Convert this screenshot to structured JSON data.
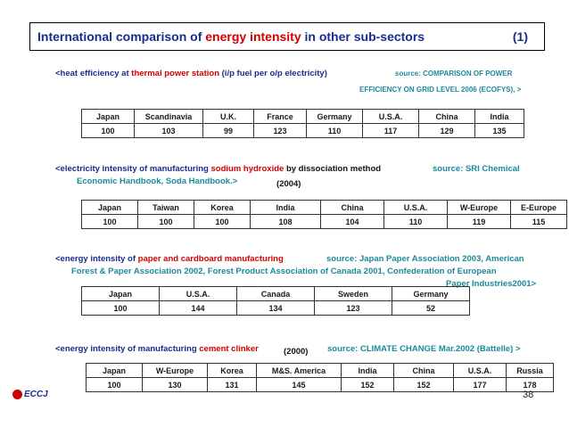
{
  "title": {
    "part1": "International comparison of ",
    "part2": "energy intensity",
    "part3": " in other sub-sectors",
    "number": "(1)"
  },
  "section1": {
    "h1": "<heat efficiency at ",
    "h2": "thermal power station",
    "h3": " (i/p fuel per o/p electricity)",
    "source1": "source: ",
    "source2": "COMPARISON OF POWER",
    "source3": "EFFICIENCY ON GRID LEVEL 2006 (ECOFYS), >",
    "headers": [
      "Japan",
      "Scandinavia",
      "U.K.",
      "France",
      "Germany",
      "U.S.A.",
      "China",
      "India"
    ],
    "values": [
      "100",
      "103",
      "99",
      "123",
      "110",
      "117",
      "129",
      "135"
    ]
  },
  "section2": {
    "h1": "<electricity intensity of manufacturing ",
    "h2": "sodium hydroxide",
    "h3": " by dissociation method",
    "source1": "source: SRI Chemical",
    "source2": "Economic Handbook,  Soda Handbook.>",
    "year": "(2004)",
    "headers": [
      "Japan",
      "Taiwan",
      "Korea",
      "India",
      "China",
      "U.S.A.",
      "W-Europe",
      "E-Europe"
    ],
    "values": [
      "100",
      "100",
      "100",
      "108",
      "104",
      "110",
      "119",
      "115"
    ]
  },
  "section3": {
    "h1": "<energy intensity of ",
    "h2": "paper and cardboard manufacturing",
    "source1": "source: Japan Paper Association 2003, American",
    "source2": "Forest & Paper Association 2002, Forest Product Association of Canada 2001, Confederation of European",
    "source3": "Paper Industries2001>",
    "headers": [
      "Japan",
      "U.S.A.",
      "Canada",
      "Sweden",
      "Germany"
    ],
    "values": [
      "100",
      "144",
      "134",
      "123",
      "52"
    ]
  },
  "section4": {
    "h1": "<energy intensity of manufacturing ",
    "h2": "cement clinker",
    "year": "(2000)",
    "source1": "source: CLIMATE CHANGE  Mar.2002 (Battelle) >",
    "headers": [
      "Japan",
      "W-Europe",
      "Korea",
      "M&S. America",
      "India",
      "China",
      "U.S.A.",
      "Russia"
    ],
    "values": [
      "100",
      "130",
      "131",
      "145",
      "152",
      "152",
      "177",
      "178"
    ]
  },
  "footer": {
    "logo": "ECCJ",
    "page": "38"
  },
  "colors": {
    "title_blue": "#1a2c8c",
    "highlight_red": "#d40000",
    "source_teal": "#1b8a9c"
  }
}
